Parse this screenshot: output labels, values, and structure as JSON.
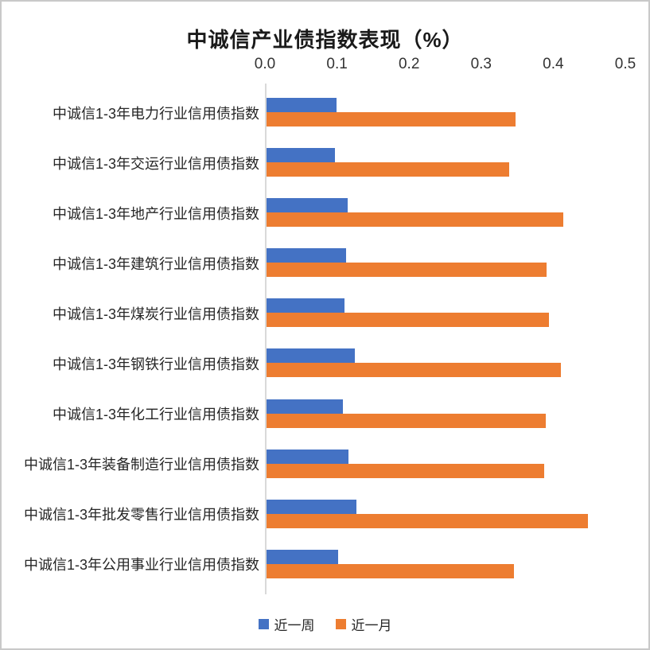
{
  "chart_data": {
    "type": "bar",
    "orientation": "horizontal",
    "title": "中诚信产业债指数表现（%）",
    "xlabel": "",
    "ylabel": "",
    "xlim": [
      0,
      0.5
    ],
    "x_axis_position": "top",
    "x_ticks": [
      {
        "value": 0.0,
        "label": "0.0"
      },
      {
        "value": 0.1,
        "label": "0.1"
      },
      {
        "value": 0.2,
        "label": "0.2"
      },
      {
        "value": 0.3,
        "label": "0.3"
      },
      {
        "value": 0.4,
        "label": "0.4"
      },
      {
        "value": 0.5,
        "label": "0.5"
      }
    ],
    "grid": false,
    "legend_position": "bottom",
    "categories": [
      "中诚信1-3年电力行业信用债指数",
      "中诚信1-3年交运行业信用债指数",
      "中诚信1-3年地产行业信用债指数",
      "中诚信1-3年建筑行业信用债指数",
      "中诚信1-3年煤炭行业信用债指数",
      "中诚信1-3年钢铁行业信用债指数",
      "中诚信1-3年化工行业信用债指数",
      "中诚信1-3年装备制造行业信用债指数",
      "中诚信1-3年批发零售行业信用债指数",
      "中诚信1-3年公用事业行业信用债指数"
    ],
    "series": [
      {
        "name": "近一周",
        "color": "#4472C4",
        "values": [
          0.097,
          0.095,
          0.113,
          0.11,
          0.108,
          0.123,
          0.106,
          0.114,
          0.125,
          0.099
        ]
      },
      {
        "name": "近一月",
        "color": "#ED7D31",
        "values": [
          0.345,
          0.337,
          0.412,
          0.388,
          0.392,
          0.408,
          0.387,
          0.385,
          0.446,
          0.343
        ]
      }
    ]
  }
}
